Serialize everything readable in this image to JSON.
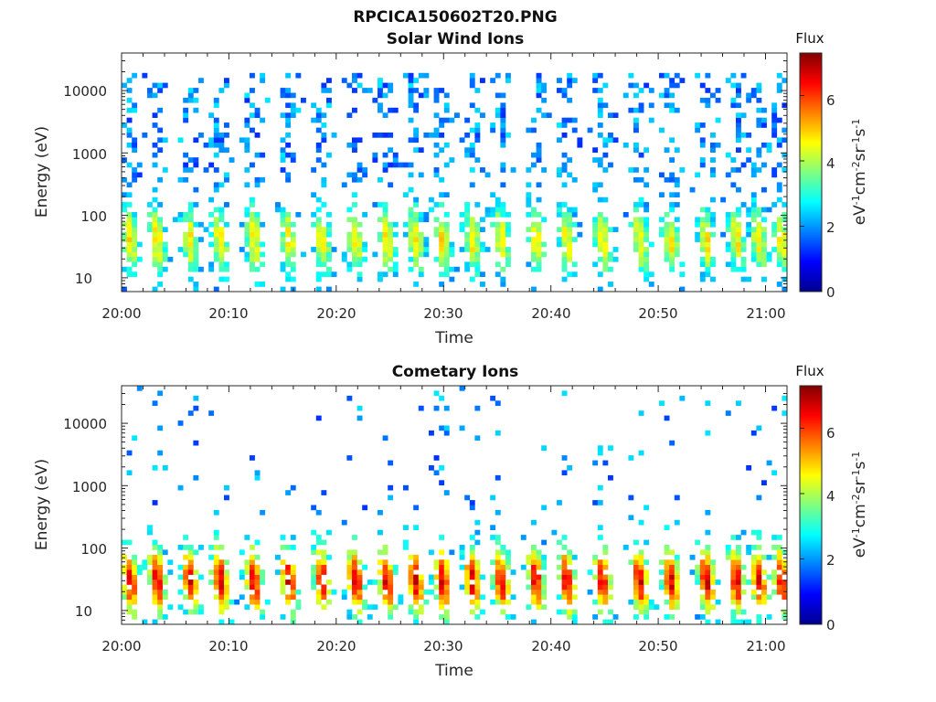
{
  "figure": {
    "filename_title": "RPCICA150602T20.PNG"
  },
  "chart_data": [
    {
      "type": "heatmap",
      "title": "Solar Wind Ions",
      "xlabel": "Time",
      "ylabel": "Energy (eV)",
      "x_ticks": [
        "20:00",
        "20:10",
        "20:20",
        "20:30",
        "20:40",
        "20:50",
        "21:00"
      ],
      "x_range_minutes": [
        0,
        62
      ],
      "y_ticks": [
        "10",
        "100",
        "1000",
        "10000"
      ],
      "y_scale": "log",
      "y_range_eV": [
        6,
        40000
      ],
      "colorbar": {
        "title": "Flux",
        "label": "eV-1cm-2sr-1s-1",
        "ticks": [
          "0",
          "2",
          "4",
          "6"
        ],
        "range": [
          0,
          7.3
        ],
        "colormap": "jet"
      },
      "pulse_times_minutes": [
        0.8,
        3.3,
        6.4,
        9.2,
        12.3,
        15.6,
        18.7,
        21.8,
        24.7,
        27.4,
        29.9,
        32.7,
        35.4,
        38.6,
        41.5,
        44.8,
        48.3,
        51.2,
        54.5,
        57.3,
        59.4,
        61.5
      ],
      "peak_flux": 4.8,
      "low_energy_peak_eV": 40,
      "high_energy_spread_eV": [
        300,
        20000
      ]
    },
    {
      "type": "heatmap",
      "title": "Cometary Ions",
      "xlabel": "Time",
      "ylabel": "Energy (eV)",
      "x_ticks": [
        "20:00",
        "20:10",
        "20:20",
        "20:30",
        "20:40",
        "20:50",
        "21:00"
      ],
      "x_range_minutes": [
        0,
        62
      ],
      "y_ticks": [
        "10",
        "100",
        "1000",
        "10000"
      ],
      "y_scale": "log",
      "y_range_eV": [
        6,
        40000
      ],
      "colorbar": {
        "title": "Flux",
        "label": "eV-1cm-2sr-1s-1",
        "ticks": [
          "0",
          "2",
          "4",
          "6"
        ],
        "range": [
          0,
          7.3
        ],
        "colormap": "jet"
      },
      "pulse_times_minutes": [
        0.8,
        3.3,
        6.4,
        9.2,
        12.3,
        15.6,
        18.7,
        21.8,
        24.7,
        27.4,
        29.9,
        32.7,
        35.4,
        38.6,
        41.5,
        44.8,
        48.3,
        51.2,
        54.5,
        57.3,
        59.4,
        61.5
      ],
      "peak_flux": 6.6,
      "low_energy_peak_eV": 30,
      "high_energy_spread_eV": [
        500,
        20000
      ]
    }
  ]
}
